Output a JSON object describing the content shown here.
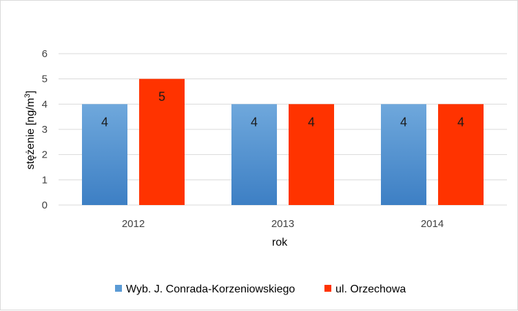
{
  "chart_data": {
    "type": "bar",
    "categories": [
      "2012",
      "2013",
      "2014"
    ],
    "series": [
      {
        "name": "Wyb. J. Conrada-Korzeniowskiego",
        "values": [
          4,
          4,
          4
        ],
        "color": "#5b9bd5"
      },
      {
        "name": "ul. Orzechowa",
        "values": [
          5,
          4,
          4
        ],
        "color": "#ff3300"
      }
    ],
    "title": "",
    "xlabel": "rok",
    "ylabel_main": "stężenie [ng/m",
    "ylabel_sup": "3",
    "ylabel_end": "]",
    "ylim": [
      0,
      6
    ],
    "yticks": [
      0,
      1,
      2,
      3,
      4,
      5,
      6
    ],
    "grid": true,
    "legend_position": "bottom",
    "data_labels": true
  }
}
